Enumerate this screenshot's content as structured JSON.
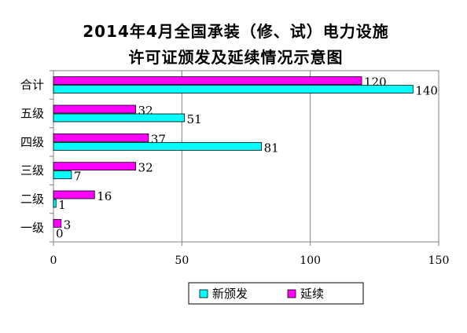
{
  "title_line1": "2014年4月全国承装（修、试）电力设施",
  "title_line2": "许可证颁发及延续情况示意图",
  "colors": {
    "new": "#00ffff",
    "renew": "#ff00ff",
    "axis": "#808080",
    "grid": "#808080"
  },
  "chart_data": {
    "type": "bar",
    "orientation": "horizontal",
    "title": "2014年4月全国承装（修、试）电力设施许可证颁发及延续情况示意图",
    "categories": [
      "合计",
      "五级",
      "四级",
      "三级",
      "二级",
      "一级"
    ],
    "series": [
      {
        "name": "延续",
        "values": [
          120,
          32,
          37,
          32,
          16,
          3
        ]
      },
      {
        "name": "新颁发",
        "values": [
          140,
          51,
          81,
          7,
          1,
          0
        ]
      }
    ],
    "xlim": [
      0,
      150
    ],
    "xticks": [
      "0",
      "50",
      "100",
      "150"
    ],
    "grid": true,
    "legend": [
      "新颁发",
      "延续"
    ],
    "legend_position": "bottom"
  }
}
